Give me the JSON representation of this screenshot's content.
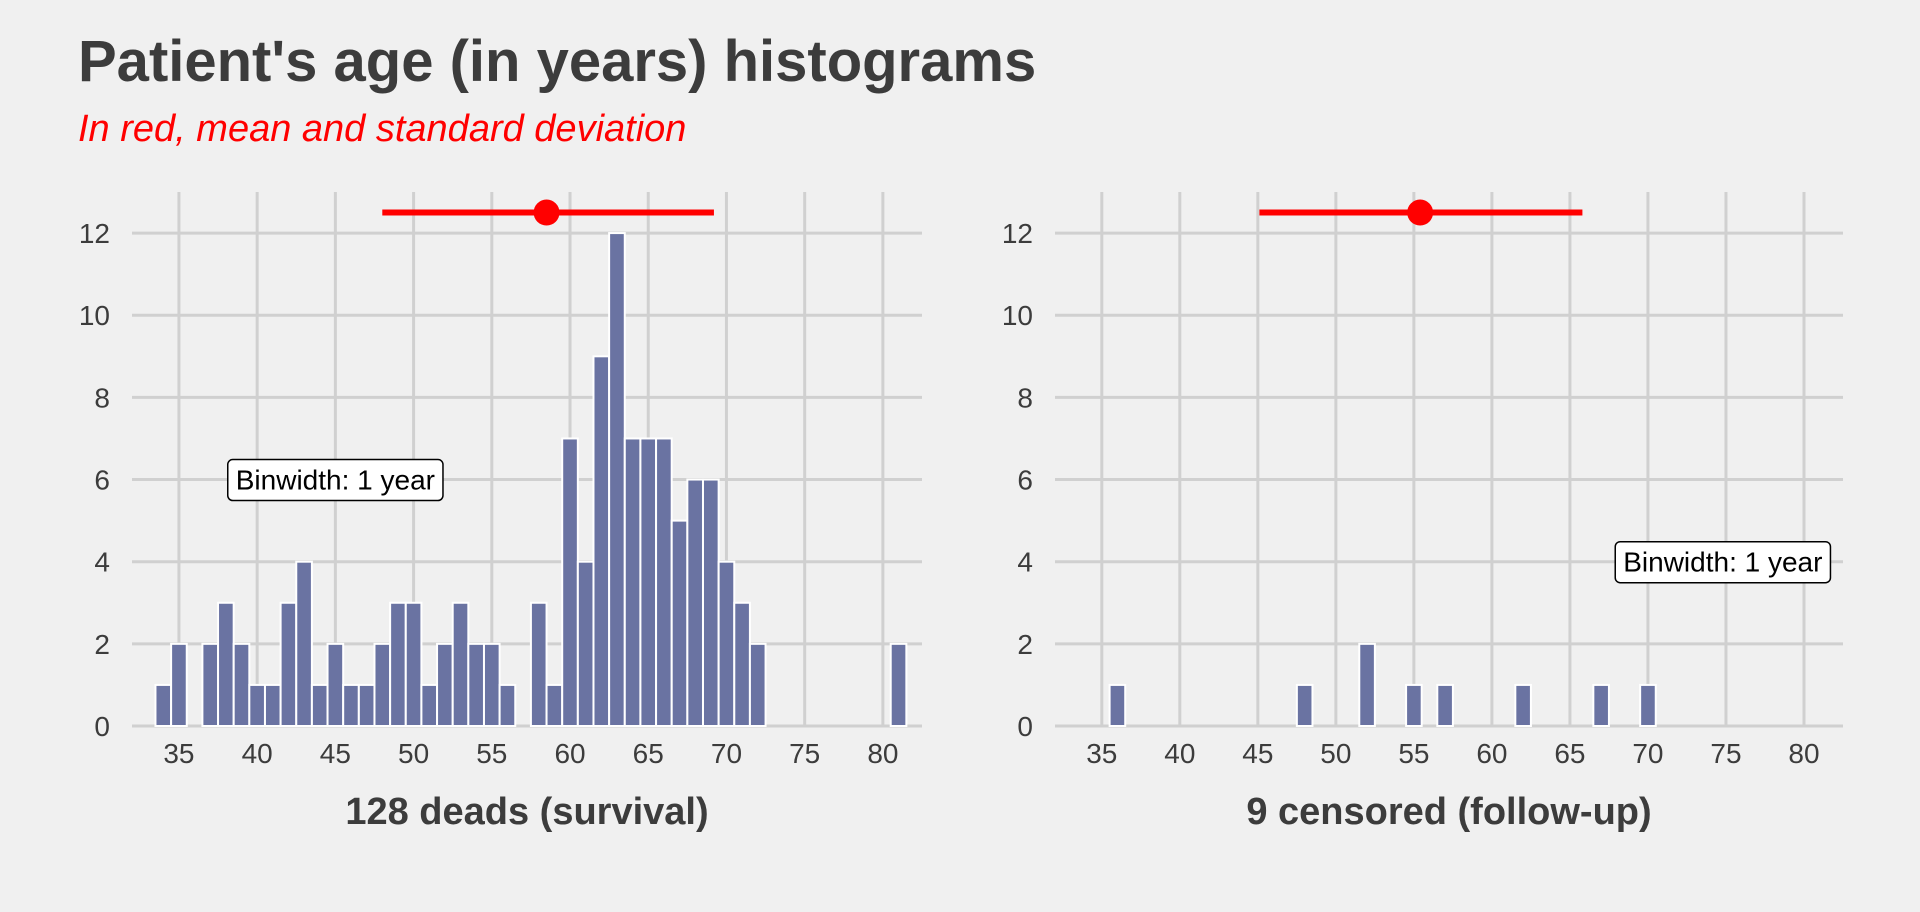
{
  "title": "Patient's age (in years) histograms",
  "subtitle": "In red, mean and standard deviation",
  "colors": {
    "bar": "#6a73a2",
    "bar_outline": "#ffffff",
    "grid": "#d0d0d0",
    "summary": "#ff0000",
    "background": "#f0f0f0"
  },
  "chart_data": [
    {
      "type": "bar",
      "xlabel": "128 deads (survival)",
      "ylabel": "",
      "xlim": [
        32,
        82.5
      ],
      "ylim": [
        0,
        13
      ],
      "xticks": [
        35,
        40,
        45,
        50,
        55,
        60,
        65,
        70,
        75,
        80
      ],
      "yticks": [
        0,
        2,
        4,
        6,
        8,
        10,
        12
      ],
      "binwidth": 1,
      "bins": [
        34,
        35,
        36,
        37,
        38,
        39,
        40,
        41,
        42,
        43,
        44,
        45,
        46,
        47,
        48,
        49,
        50,
        51,
        52,
        53,
        54,
        55,
        56,
        57,
        58,
        59,
        60,
        61,
        62,
        63,
        64,
        65,
        66,
        67,
        68,
        69,
        70,
        71,
        72,
        73,
        74,
        75,
        76,
        77,
        78,
        79,
        80,
        81
      ],
      "values": [
        1,
        2,
        0,
        2,
        3,
        2,
        1,
        1,
        3,
        4,
        1,
        2,
        1,
        1,
        2,
        3,
        3,
        1,
        2,
        3,
        2,
        2,
        1,
        0,
        3,
        1,
        7,
        4,
        9,
        12,
        7,
        7,
        7,
        5,
        6,
        6,
        4,
        3,
        2,
        0,
        0,
        0,
        0,
        0,
        0,
        0,
        0,
        2
      ],
      "mean": 58.5,
      "sd_range": [
        48,
        69.2
      ],
      "summary_y": 12.5,
      "annotation": {
        "text": "Binwidth: 1 year",
        "x": 45,
        "y": 6
      },
      "grid": true
    },
    {
      "type": "bar",
      "xlabel": "9 censored (follow-up)",
      "ylabel": "",
      "xlim": [
        32,
        82.5
      ],
      "ylim": [
        0,
        13
      ],
      "xticks": [
        35,
        40,
        45,
        50,
        55,
        60,
        65,
        70,
        75,
        80
      ],
      "yticks": [
        0,
        2,
        4,
        6,
        8,
        10,
        12
      ],
      "binwidth": 1,
      "bins": [
        36,
        48,
        52,
        55,
        57,
        62,
        67,
        70
      ],
      "values": [
        1,
        1,
        2,
        1,
        1,
        1,
        1,
        1
      ],
      "mean": 55.4,
      "sd_range": [
        45.1,
        65.8
      ],
      "summary_y": 12.5,
      "annotation": {
        "text": "Binwidth: 1 year",
        "x": 74.8,
        "y": 4
      },
      "grid": true
    }
  ]
}
